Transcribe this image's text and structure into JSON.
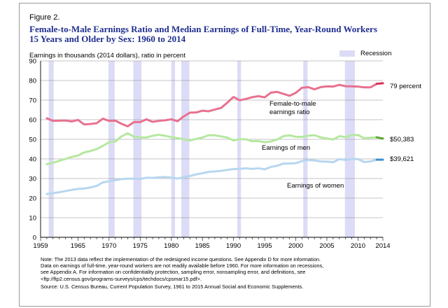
{
  "figure_label": "Figure 2.",
  "title_line1": "Female-to-Male Earnings Ratio and Median Earnings of Full-Time, Year-Round Workers",
  "title_line2": "15 Years and Older by Sex: 1960 to 2014",
  "colors": {
    "ratio": "#e8718f",
    "ratio_end": "#d8305a",
    "men": "#b5e8a0",
    "men_end": "#5fa832",
    "women": "#b8d6ef",
    "women_end": "#3a8fd2",
    "recession": "#dcdcf7",
    "title": "#1f2e8f"
  },
  "chart_data": {
    "type": "line",
    "title": "Female-to-Male Earnings Ratio and Median Earnings of Full-Time, Year-Round Workers 15 Years and Older by Sex: 1960 to 2014",
    "ylabel": "Earnings in thousands (2014 dollars), ratio in percent",
    "xlabel": "",
    "xlim": [
      1959,
      2014
    ],
    "ylim": [
      0,
      90
    ],
    "x_ticks": [
      1959,
      1965,
      1970,
      1975,
      1980,
      1985,
      1990,
      1995,
      2000,
      2005,
      2010,
      2014
    ],
    "y_ticks": [
      0,
      10,
      20,
      30,
      40,
      50,
      60,
      70,
      80,
      90
    ],
    "legend": {
      "recession_label": "Recession",
      "placement": "top-right"
    },
    "recessions": [
      [
        1960.3,
        1961.1
      ],
      [
        1969.9,
        1970.9
      ],
      [
        1973.9,
        1975.2
      ],
      [
        1980.0,
        1980.6
      ],
      [
        1981.6,
        1982.9
      ],
      [
        1990.6,
        1991.2
      ],
      [
        2001.2,
        2001.9
      ],
      [
        2007.9,
        2009.5
      ]
    ],
    "series": [
      {
        "name": "Female-to-male earnings ratio",
        "label_lines": [
          "Female-to-male",
          "earnings ratio"
        ],
        "end_label": "79 percent",
        "x": [
          1960,
          1961,
          1962,
          1963,
          1964,
          1965,
          1966,
          1967,
          1968,
          1969,
          1970,
          1971,
          1972,
          1973,
          1974,
          1975,
          1976,
          1977,
          1978,
          1979,
          1980,
          1981,
          1982,
          1983,
          1984,
          1985,
          1986,
          1987,
          1988,
          1989,
          1990,
          1991,
          1992,
          1993,
          1994,
          1995,
          1996,
          1997,
          1998,
          1999,
          2000,
          2001,
          2002,
          2003,
          2004,
          2005,
          2006,
          2007,
          2008,
          2009,
          2010,
          2011,
          2012,
          2013,
          2014
        ],
        "values": [
          60.7,
          59.4,
          59.5,
          59.6,
          59.1,
          59.9,
          57.6,
          57.8,
          58.2,
          60.5,
          59.4,
          59.5,
          57.9,
          56.6,
          58.8,
          58.8,
          60.2,
          58.9,
          59.4,
          59.7,
          60.2,
          59.2,
          61.7,
          63.6,
          63.7,
          64.6,
          64.3,
          65.2,
          66.0,
          68.7,
          71.6,
          69.9,
          70.6,
          71.5,
          72.0,
          71.4,
          73.8,
          74.2,
          73.2,
          72.2,
          73.7,
          76.3,
          76.6,
          75.5,
          76.6,
          77.0,
          76.9,
          77.8,
          77.1,
          77.0,
          76.9,
          76.5,
          76.5,
          78.3,
          78.6
        ]
      },
      {
        "name": "Earnings of men",
        "end_label": "$50,383",
        "x": [
          1960,
          1961,
          1962,
          1963,
          1964,
          1965,
          1966,
          1967,
          1968,
          1969,
          1970,
          1971,
          1972,
          1973,
          1974,
          1975,
          1976,
          1977,
          1978,
          1979,
          1980,
          1981,
          1982,
          1983,
          1984,
          1985,
          1986,
          1987,
          1988,
          1989,
          1990,
          1991,
          1992,
          1993,
          1994,
          1995,
          1996,
          1997,
          1998,
          1999,
          2000,
          2001,
          2002,
          2003,
          2004,
          2005,
          2006,
          2007,
          2008,
          2009,
          2010,
          2011,
          2012,
          2013,
          2014
        ],
        "values": [
          37.3,
          38.0,
          39.0,
          40.0,
          41.0,
          41.7,
          43.3,
          44.0,
          45.0,
          46.6,
          48.5,
          48.9,
          51.5,
          53.1,
          51.3,
          51.0,
          50.9,
          51.8,
          52.3,
          51.8,
          51.1,
          50.6,
          50.0,
          49.4,
          50.2,
          50.9,
          52.1,
          52.0,
          51.5,
          50.9,
          49.4,
          50.1,
          50.0,
          49.0,
          49.1,
          48.5,
          48.9,
          49.9,
          51.6,
          52.0,
          51.3,
          51.2,
          51.8,
          52.1,
          51.0,
          50.4,
          49.9,
          51.6,
          51.1,
          52.1,
          52.2,
          50.5,
          50.8,
          51.0,
          50.4
        ]
      },
      {
        "name": "Earnings of women",
        "end_label": "$39,621",
        "x": [
          1960,
          1961,
          1962,
          1963,
          1964,
          1965,
          1966,
          1967,
          1968,
          1969,
          1970,
          1971,
          1972,
          1973,
          1974,
          1975,
          1976,
          1977,
          1978,
          1979,
          1980,
          1981,
          1982,
          1983,
          1984,
          1985,
          1986,
          1987,
          1988,
          1989,
          1990,
          1991,
          1992,
          1993,
          1994,
          1995,
          1996,
          1997,
          1998,
          1999,
          2000,
          2001,
          2002,
          2003,
          2004,
          2005,
          2006,
          2007,
          2008,
          2009,
          2010,
          2011,
          2012,
          2013,
          2014
        ],
        "values": [
          22.1,
          22.5,
          23.0,
          23.6,
          24.2,
          24.7,
          24.9,
          25.4,
          26.2,
          28.0,
          28.6,
          29.2,
          29.7,
          29.9,
          29.9,
          29.8,
          30.4,
          30.3,
          30.6,
          30.8,
          30.4,
          30.0,
          30.6,
          31.3,
          32.1,
          32.7,
          33.4,
          33.6,
          33.9,
          34.4,
          34.8,
          34.9,
          35.2,
          34.9,
          35.2,
          34.7,
          35.9,
          36.5,
          37.6,
          37.7,
          37.8,
          38.9,
          39.4,
          39.2,
          38.7,
          38.6,
          38.3,
          39.9,
          39.4,
          40.0,
          39.9,
          38.4,
          38.7,
          39.6,
          39.6
        ]
      }
    ],
    "annotations": [
      {
        "text": "Earnings of men",
        "series": "Earnings of men"
      },
      {
        "text": "Earnings of women",
        "series": "Earnings of women"
      }
    ]
  },
  "notes": {
    "line1": "Note: The 2013 data reflect the implementation of the redesigned income questions. See Appendix D for more information.",
    "line2": "Data on earnings of full-time, year-round workers are not readily available before 1960. For more information on recessions,",
    "line3": "see Appendix A. For information on confidentiality protection, sampling error, nonsampling error, and definitions, see",
    "line4": "<ftp://ftp2.census.gov/programs-surveys/cps/techdocs/cpsmar15.pdf>.",
    "source": "Source: U.S. Census Bureau, Current Population Survey, 1961 to 2015 Annual Social and Economic Supplements."
  }
}
